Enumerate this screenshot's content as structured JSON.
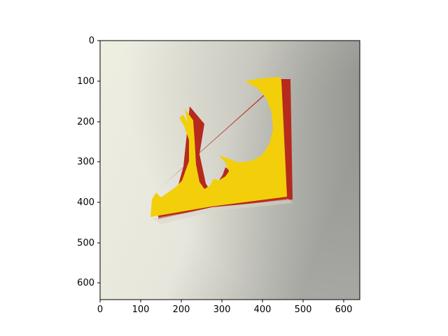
{
  "figure": {
    "image_description": "photograph of folded yellow and red paper cut-out shape on white background",
    "x_axis": {
      "ticks": [
        "0",
        "100",
        "200",
        "300",
        "400",
        "500",
        "600"
      ]
    },
    "y_axis": {
      "ticks": [
        "0",
        "100",
        "200",
        "300",
        "400",
        "500",
        "600"
      ]
    },
    "xlim": [
      0,
      640
    ],
    "ylim": [
      640,
      0
    ]
  },
  "colors": {
    "paper_yellow": "#f2cf0a",
    "paper_red": "#b62a1e",
    "axes": "#000000"
  }
}
